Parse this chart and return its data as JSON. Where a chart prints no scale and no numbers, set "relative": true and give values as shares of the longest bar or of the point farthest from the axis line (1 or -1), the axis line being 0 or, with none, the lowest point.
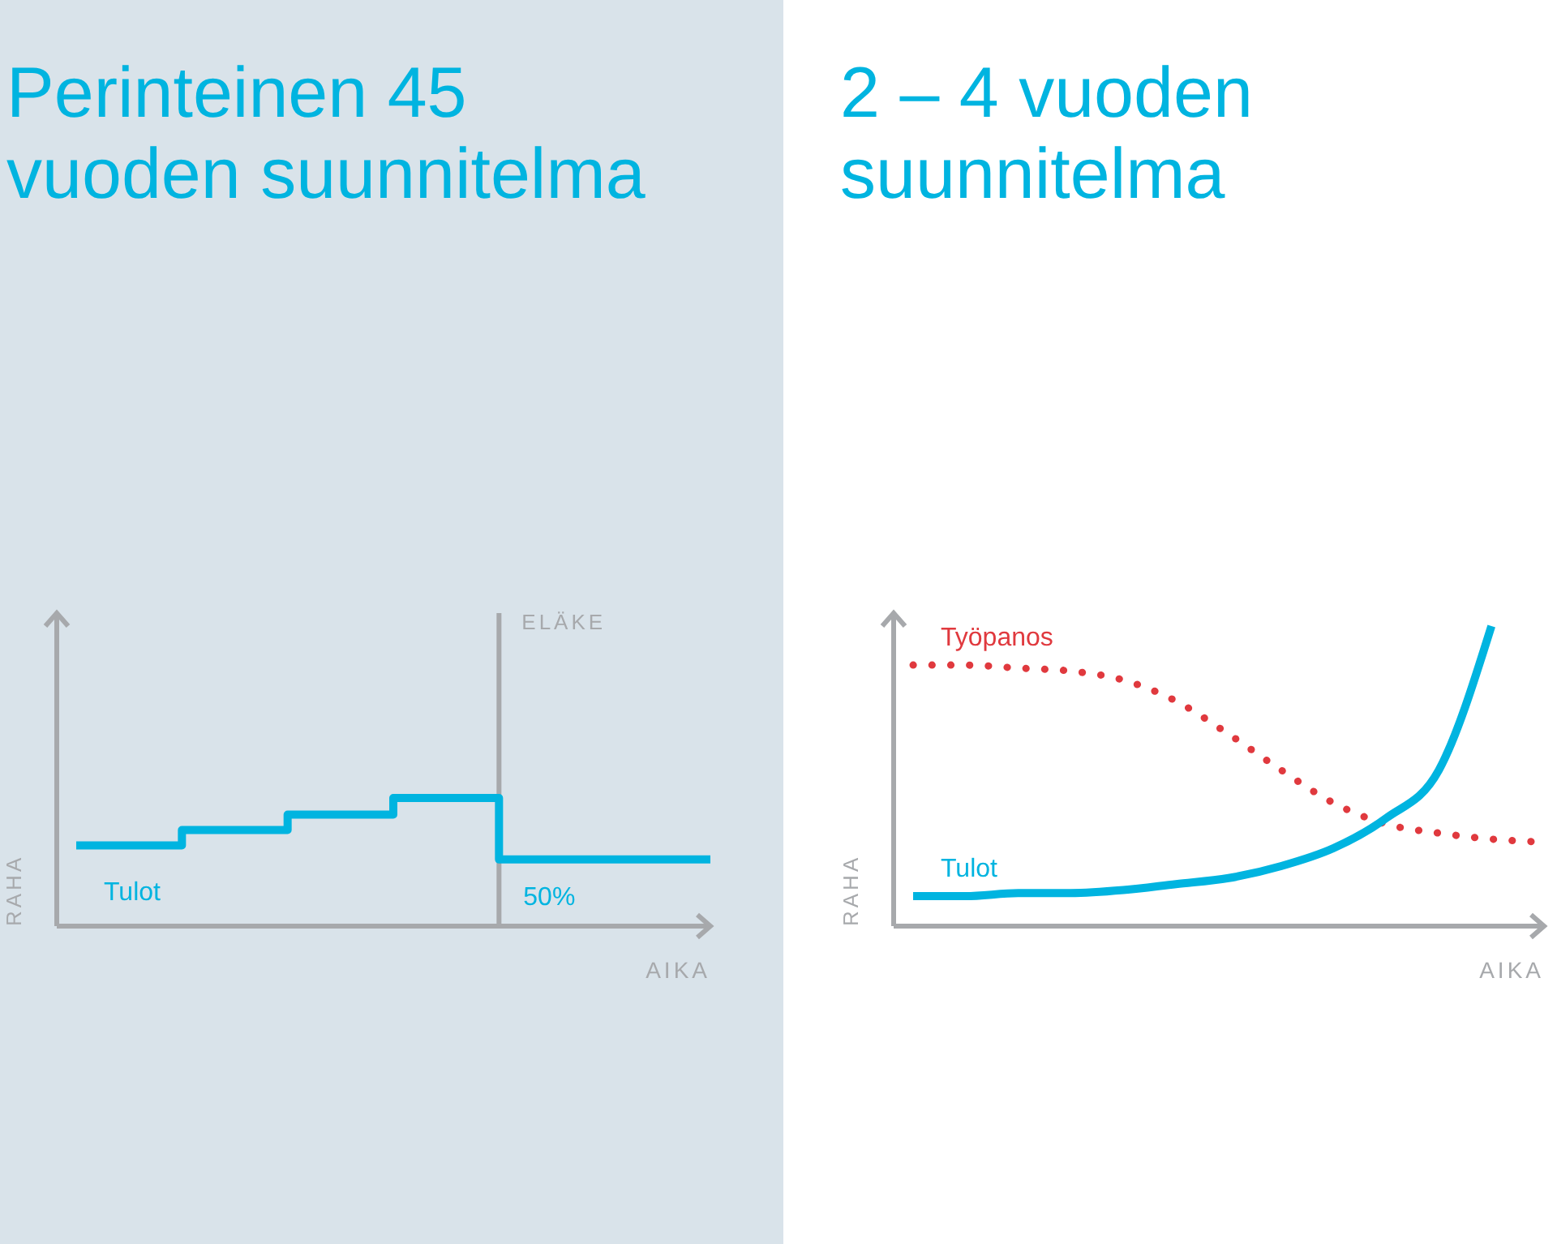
{
  "chart_data": [
    {
      "type": "step",
      "title": "Perinteinen 45\nvuoden suunnitelma",
      "xlabel": "AIKA",
      "ylabel": "RAHA",
      "relative": true,
      "categories": [
        null,
        null,
        null,
        null,
        null,
        null,
        null
      ],
      "series": [
        {
          "name": "Tulot",
          "color": "#00b4e0",
          "values": [
            0.63,
            0.75,
            0.87,
            1,
            0.52,
            0.52,
            0.52
          ]
        }
      ],
      "annotations": [
        "ELÄKE",
        "50%"
      ]
    },
    {
      "type": "line",
      "title": "2 – 4 vuoden\nsuunnitelma",
      "xlabel": "AIKA",
      "ylabel": "RAHA",
      "relative": true,
      "categories": [
        null,
        null,
        null,
        null,
        null,
        null,
        null,
        null,
        null,
        null,
        null,
        null,
        null
      ],
      "series": [
        {
          "name": "Työpanos",
          "color": "#e0393e",
          "line_style": "dotted",
          "values": [
            0.87,
            0.87,
            0.86,
            0.85,
            0.82,
            0.75,
            0.64,
            0.52,
            0.41,
            0.34,
            0.31,
            0.29,
            0.28
          ]
        },
        {
          "name": "Tulot",
          "color": "#00b4e0",
          "line_style": "solid",
          "values": [
            0.1,
            0.1,
            0.11,
            0.11,
            0.12,
            0.14,
            0.16,
            0.2,
            0.26,
            0.36,
            0.52,
            1.0,
            null
          ]
        }
      ]
    }
  ]
}
